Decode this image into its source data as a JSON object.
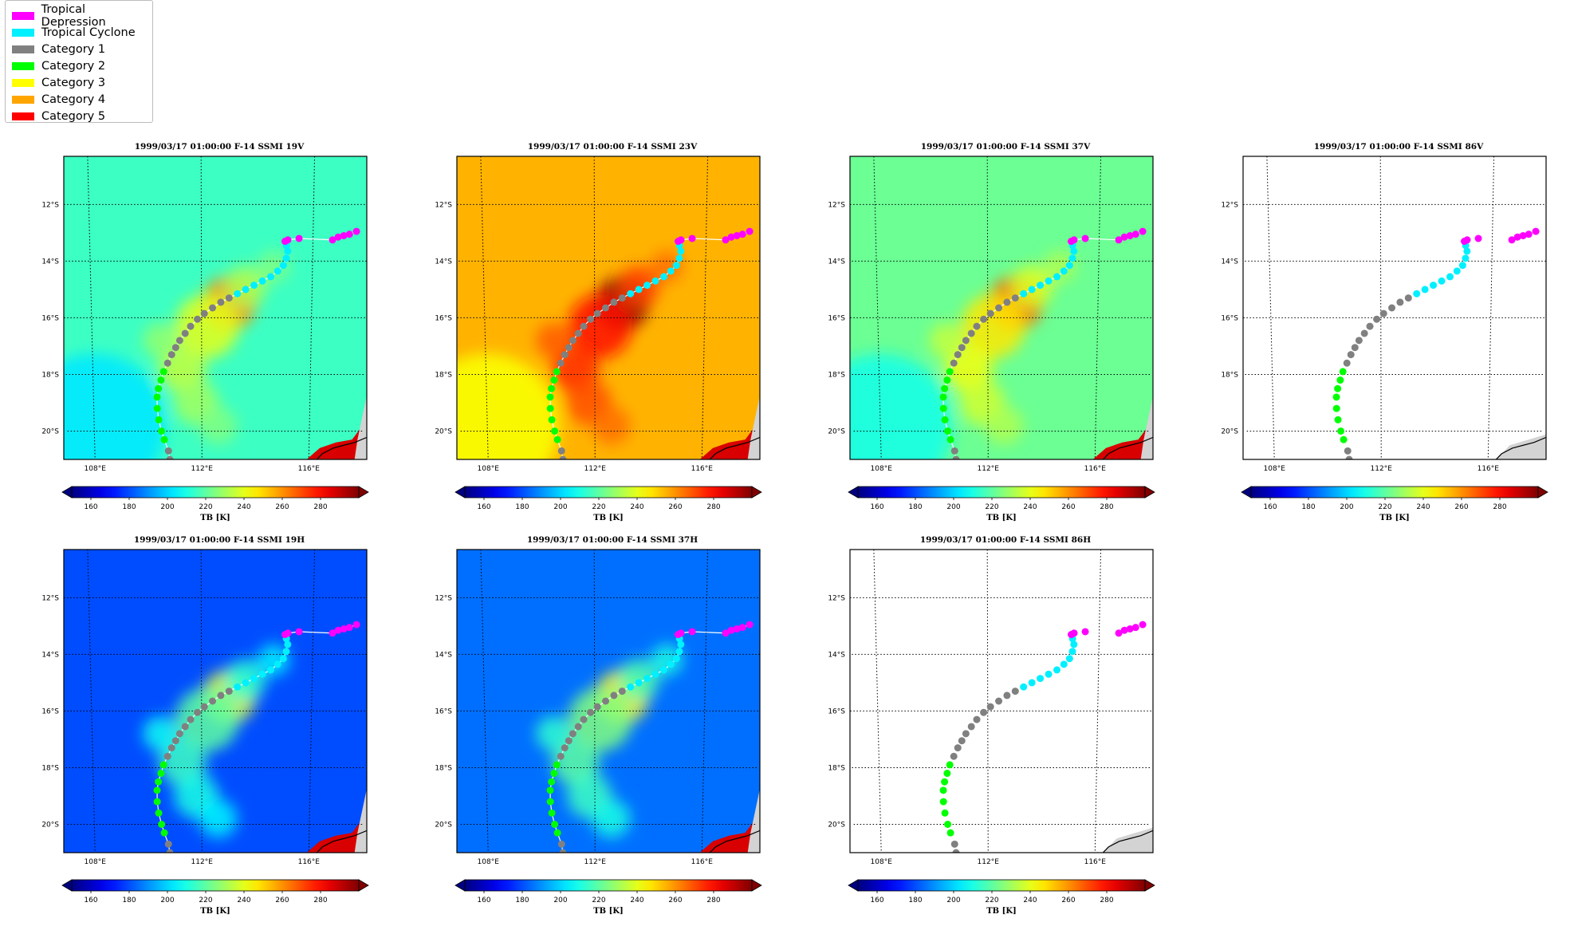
{
  "legend": {
    "items": [
      {
        "label": "Tropical Depression",
        "color": "#ff00ff"
      },
      {
        "label": "Tropical Cyclone",
        "color": "#00f0ff"
      },
      {
        "label": "Category 1",
        "color": "#808080"
      },
      {
        "label": "Category 2",
        "color": "#00ff00"
      },
      {
        "label": "Category 3",
        "color": "#ffff00"
      },
      {
        "label": "Category 4",
        "color": "#ffa500"
      },
      {
        "label": "Category 5",
        "color": "#ff0000"
      }
    ]
  },
  "map": {
    "lon_ticks": [
      {
        "value": 108,
        "label": "108°E"
      },
      {
        "value": 112,
        "label": "112°E"
      },
      {
        "value": 116,
        "label": "116°E"
      }
    ],
    "lat_ticks": [
      {
        "value": -12,
        "label": "12°S"
      },
      {
        "value": -14,
        "label": "14°S"
      },
      {
        "value": -16,
        "label": "16°S"
      },
      {
        "value": -18,
        "label": "18°S"
      },
      {
        "value": -20,
        "label": "20°S"
      }
    ],
    "lon_range": [
      107,
      118
    ],
    "lat_range": [
      -21,
      -10.3
    ]
  },
  "colorbar": {
    "label": "TB [K]",
    "ticks": [
      160,
      180,
      200,
      220,
      240,
      260,
      280
    ],
    "range": [
      150,
      300
    ]
  },
  "panels": [
    {
      "title": "1999/03/17 01:00:00  F-14 SSMI 19V",
      "channel": "19V",
      "background_tb": 215
    },
    {
      "title": "1999/03/17 01:00:00  F-14 SSMI 23V",
      "channel": "23V",
      "background_tb": 255
    },
    {
      "title": "1999/03/17 01:00:00  F-14 SSMI 37V",
      "channel": "37V",
      "background_tb": 222
    },
    {
      "title": "1999/03/17 01:00:00  F-14 SSMI 86V",
      "channel": "86V",
      "background_tb": null
    },
    {
      "title": "1999/03/17 01:00:00  F-14 SSMI 19H",
      "channel": "19H",
      "background_tb": 180
    },
    {
      "title": "1999/03/17 01:00:00  F-14 SSMI 37H",
      "channel": "37H",
      "background_tb": 185
    },
    {
      "title": "1999/03/17 01:00:00  F-14 SSMI 86H",
      "channel": "86H",
      "background_tb": null
    }
  ],
  "track": [
    {
      "lon": 110.8,
      "lat": -21.0,
      "cat": "Category 1"
    },
    {
      "lon": 110.75,
      "lat": -20.7,
      "cat": "Category 1"
    },
    {
      "lon": 110.6,
      "lat": -20.3,
      "cat": "Category 2"
    },
    {
      "lon": 110.5,
      "lat": -20.0,
      "cat": "Category 2"
    },
    {
      "lon": 110.4,
      "lat": -19.6,
      "cat": "Category 2"
    },
    {
      "lon": 110.35,
      "lat": -19.2,
      "cat": "Category 2"
    },
    {
      "lon": 110.35,
      "lat": -18.8,
      "cat": "Category 2"
    },
    {
      "lon": 110.4,
      "lat": -18.5,
      "cat": "Category 2"
    },
    {
      "lon": 110.5,
      "lat": -18.2,
      "cat": "Category 2"
    },
    {
      "lon": 110.6,
      "lat": -17.9,
      "cat": "Category 2"
    },
    {
      "lon": 110.75,
      "lat": -17.6,
      "cat": "Category 1"
    },
    {
      "lon": 110.9,
      "lat": -17.3,
      "cat": "Category 1"
    },
    {
      "lon": 111.05,
      "lat": -17.05,
      "cat": "Category 1"
    },
    {
      "lon": 111.2,
      "lat": -16.8,
      "cat": "Category 1"
    },
    {
      "lon": 111.4,
      "lat": -16.55,
      "cat": "Category 1"
    },
    {
      "lon": 111.6,
      "lat": -16.3,
      "cat": "Category 1"
    },
    {
      "lon": 111.85,
      "lat": -16.05,
      "cat": "Category 1"
    },
    {
      "lon": 112.1,
      "lat": -15.85,
      "cat": "Category 1"
    },
    {
      "lon": 112.4,
      "lat": -15.65,
      "cat": "Category 1"
    },
    {
      "lon": 112.7,
      "lat": -15.45,
      "cat": "Category 1"
    },
    {
      "lon": 113.0,
      "lat": -15.3,
      "cat": "Category 1"
    },
    {
      "lon": 113.3,
      "lat": -15.15,
      "cat": "Tropical Cyclone"
    },
    {
      "lon": 113.6,
      "lat": -15.0,
      "cat": "Tropical Cyclone"
    },
    {
      "lon": 113.9,
      "lat": -14.85,
      "cat": "Tropical Cyclone"
    },
    {
      "lon": 114.2,
      "lat": -14.7,
      "cat": "Tropical Cyclone"
    },
    {
      "lon": 114.5,
      "lat": -14.55,
      "cat": "Tropical Cyclone"
    },
    {
      "lon": 114.75,
      "lat": -14.35,
      "cat": "Tropical Cyclone"
    },
    {
      "lon": 114.95,
      "lat": -14.15,
      "cat": "Tropical Cyclone"
    },
    {
      "lon": 115.05,
      "lat": -13.9,
      "cat": "Tropical Cyclone"
    },
    {
      "lon": 115.1,
      "lat": -13.65,
      "cat": "Tropical Cyclone"
    },
    {
      "lon": 115.05,
      "lat": -13.45,
      "cat": "Tropical Cyclone"
    },
    {
      "lon": 115.0,
      "lat": -13.3,
      "cat": "Tropical Depression"
    },
    {
      "lon": 115.1,
      "lat": -13.25,
      "cat": "Tropical Depression"
    },
    {
      "lon": 115.5,
      "lat": -13.2,
      "cat": "Tropical Depression"
    },
    {
      "lon": 116.7,
      "lat": -13.25,
      "cat": "Tropical Depression"
    },
    {
      "lon": 116.9,
      "lat": -13.15,
      "cat": "Tropical Depression"
    },
    {
      "lon": 117.1,
      "lat": -13.1,
      "cat": "Tropical Depression"
    },
    {
      "lon": 117.3,
      "lat": -13.05,
      "cat": "Tropical Depression"
    },
    {
      "lon": 117.55,
      "lat": -12.95,
      "cat": "Tropical Depression"
    }
  ]
}
